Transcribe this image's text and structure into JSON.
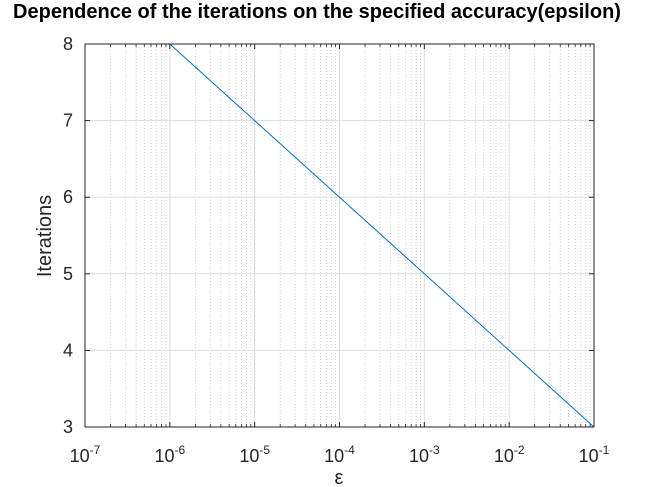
{
  "chart_data": {
    "type": "line",
    "title": "Dependence of the iterations on the specified accuracy(epsilon)",
    "xlabel": "ε",
    "ylabel": "Iterations",
    "x_scale": "log",
    "xlim": [
      1e-07,
      0.1
    ],
    "ylim": [
      3,
      8
    ],
    "x_ticks": [
      {
        "value": 1e-07,
        "base": "10",
        "exp": "-7"
      },
      {
        "value": 1e-06,
        "base": "10",
        "exp": "-6"
      },
      {
        "value": 1e-05,
        "base": "10",
        "exp": "-5"
      },
      {
        "value": 0.0001,
        "base": "10",
        "exp": "-4"
      },
      {
        "value": 0.001,
        "base": "10",
        "exp": "-3"
      },
      {
        "value": 0.01,
        "base": "10",
        "exp": "-2"
      },
      {
        "value": 0.1,
        "base": "10",
        "exp": "-1"
      }
    ],
    "y_ticks": [
      3,
      4,
      5,
      6,
      7,
      8
    ],
    "grid": true,
    "minor_grid": true,
    "line_color": "#0072bd",
    "series": [
      {
        "x": [
          1e-07,
          1e-06,
          1e-05,
          0.0001,
          0.001,
          0.01,
          0.1
        ],
        "y": [
          8,
          8,
          7,
          6,
          5,
          4,
          3
        ]
      }
    ]
  }
}
